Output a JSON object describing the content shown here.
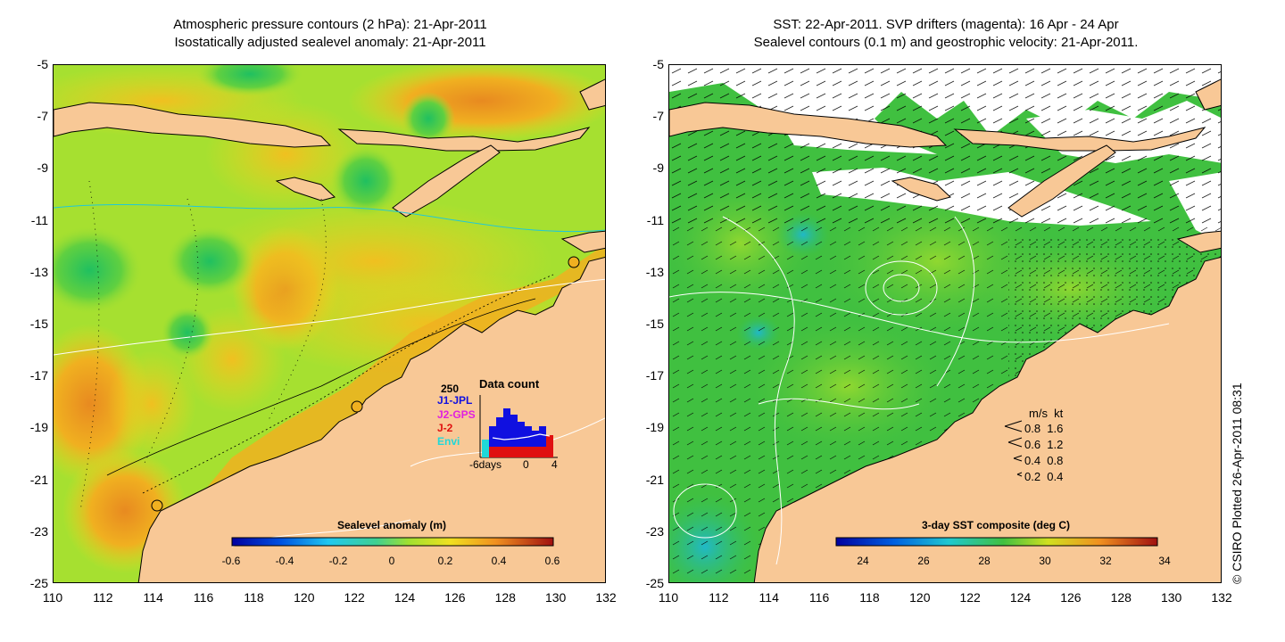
{
  "left_panel": {
    "title_line1": "Atmospheric pressure contours (2 hPa): 21-Apr-2011",
    "title_line2": "Isostatically adjusted sealevel anomaly: 21-Apr-2011",
    "colorbar": {
      "label": "Sealevel anomaly (m)",
      "ticks": [
        "-0.6",
        "-0.4",
        "-0.2",
        "0",
        "0.2",
        "0.4",
        "0.6"
      ]
    },
    "inset": {
      "title": "Data count",
      "max_label": "250",
      "missions": [
        {
          "name": "J1-JPL",
          "color": "#1010e0"
        },
        {
          "name": "J2-GPS",
          "color": "#e020e0"
        },
        {
          "name": "J-2",
          "color": "#e01010"
        },
        {
          "name": "Envi",
          "color": "#20d8d8"
        }
      ],
      "x_labels": [
        "-6days",
        "0",
        "4"
      ]
    }
  },
  "right_panel": {
    "title_line1": "SST: 22-Apr-2011. SVP drifters (magenta): 16 Apr - 24 Apr",
    "title_line2": "Sealevel contours (0.1 m) and geostrophic velocity: 21-Apr-2011.",
    "colorbar": {
      "label": "3-day SST composite (deg C)",
      "ticks": [
        "24",
        "26",
        "28",
        "30",
        "32",
        "34"
      ]
    },
    "velocity_legend": {
      "header": "m/s  kt",
      "rows": [
        "0.8  1.6",
        "0.6  1.2",
        "0.4  0.8",
        "0.2  0.4"
      ]
    }
  },
  "axes": {
    "y_ticks": [
      "-5",
      "-7",
      "-9",
      "-11",
      "-13",
      "-15",
      "-17",
      "-19",
      "-21",
      "-23",
      "-25"
    ],
    "x_ticks": [
      "110",
      "112",
      "114",
      "116",
      "118",
      "120",
      "122",
      "124",
      "126",
      "128",
      "130",
      "132"
    ]
  },
  "credit": "© CSIRO Plotted 26-Apr-2011 08:31",
  "colors": {
    "land": "#f8c896",
    "ocean_green": "#a6e030",
    "ocean_yellow": "#e8d820",
    "ocean_orange": "#f0b020",
    "sst_green": "#40c040",
    "sst_cyan": "#30c0c0"
  }
}
